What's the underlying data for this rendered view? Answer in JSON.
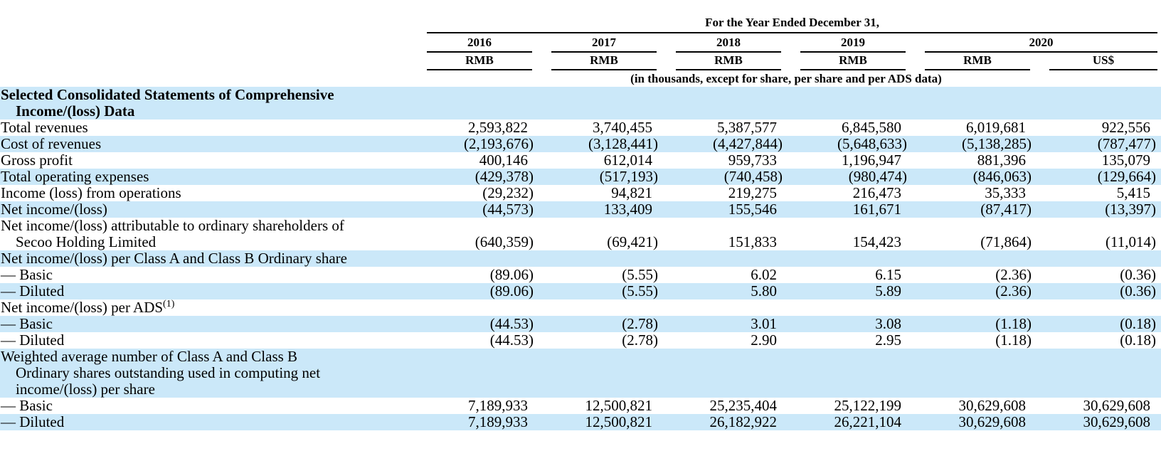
{
  "table": {
    "title": "For the Year Ended December 31,",
    "units_note": "(in thousands, except for share, per share and per ADS data)",
    "colors": {
      "stripe": "#cbe8f9",
      "text": "#000000",
      "rule": "#000000"
    },
    "year_columns": [
      {
        "label": "2016",
        "span": 1
      },
      {
        "label": "2017",
        "span": 1
      },
      {
        "label": "2018",
        "span": 1
      },
      {
        "label": "2019",
        "span": 1
      },
      {
        "label": "2020",
        "span": 2
      }
    ],
    "currency_columns": [
      "RMB",
      "RMB",
      "RMB",
      "RMB",
      "RMB",
      "US$"
    ],
    "rows": [
      {
        "label": "Selected Consolidated Statements of Comprehensive\nIncome/(loss) Data",
        "bold": true,
        "shaded": true,
        "values": [
          "",
          "",
          "",
          "",
          "",
          ""
        ]
      },
      {
        "label": "Total revenues",
        "bold": false,
        "shaded": false,
        "values": [
          "2,593,822",
          "3,740,455",
          "5,387,577",
          "6,845,580",
          "6,019,681",
          "922,556"
        ]
      },
      {
        "label": "Cost of revenues",
        "bold": false,
        "shaded": true,
        "values": [
          "(2,193,676)",
          "(3,128,441)",
          "(4,427,844)",
          "(5,648,633)",
          "(5,138,285)",
          "(787,477)"
        ]
      },
      {
        "label": "Gross profit",
        "bold": false,
        "shaded": false,
        "values": [
          "400,146",
          "612,014",
          "959,733",
          "1,196,947",
          "881,396",
          "135,079"
        ]
      },
      {
        "label": "Total operating expenses",
        "bold": false,
        "shaded": true,
        "values": [
          "(429,378)",
          "(517,193)",
          "(740,458)",
          "(980,474)",
          "(846,063)",
          "(129,664)"
        ]
      },
      {
        "label": "Income (loss) from operations",
        "bold": false,
        "shaded": false,
        "values": [
          "(29,232)",
          "94,821",
          "219,275",
          "216,473",
          "35,333",
          "5,415"
        ]
      },
      {
        "label": "Net income/(loss)",
        "bold": false,
        "shaded": true,
        "values": [
          "(44,573)",
          "133,409",
          "155,546",
          "161,671",
          "(87,417)",
          "(13,397)"
        ]
      },
      {
        "label": "Net income/(loss) attributable to ordinary shareholders of\nSecoo Holding Limited",
        "bold": false,
        "shaded": false,
        "values": [
          "(640,359)",
          "(69,421)",
          "151,833",
          "154,423",
          "(71,864)",
          "(11,014)"
        ]
      },
      {
        "label": "Net income/(loss) per Class A and Class B Ordinary share",
        "bold": false,
        "shaded": true,
        "values": [
          "",
          "",
          "",
          "",
          "",
          ""
        ]
      },
      {
        "label": "— Basic",
        "bold": false,
        "shaded": false,
        "values": [
          "(89.06)",
          "(5.55)",
          "6.02",
          "6.15",
          "(2.36)",
          "(0.36)"
        ]
      },
      {
        "label": "— Diluted",
        "bold": false,
        "shaded": true,
        "values": [
          "(89.06)",
          "(5.55)",
          "5.80",
          "5.89",
          "(2.36)",
          "(0.36)"
        ]
      },
      {
        "label": "Net income/(loss) per ADS",
        "sup": "(1)",
        "bold": false,
        "shaded": false,
        "values": [
          "",
          "",
          "",
          "",
          "",
          ""
        ]
      },
      {
        "label": "— Basic",
        "bold": false,
        "shaded": true,
        "values": [
          "(44.53)",
          "(2.78)",
          "3.01",
          "3.08",
          "(1.18)",
          "(0.18)"
        ]
      },
      {
        "label": "— Diluted",
        "bold": false,
        "shaded": false,
        "values": [
          "(44.53)",
          "(2.78)",
          "2.90",
          "2.95",
          "(1.18)",
          "(0.18)"
        ]
      },
      {
        "label": "Weighted average number of Class A and Class B\nOrdinary shares outstanding used in computing net\nincome/(loss) per share",
        "bold": false,
        "shaded": true,
        "values": [
          "",
          "",
          "",
          "",
          "",
          ""
        ]
      },
      {
        "label": "— Basic",
        "bold": false,
        "shaded": false,
        "values": [
          "7,189,933",
          "12,500,821",
          "25,235,404",
          "25,122,199",
          "30,629,608",
          "30,629,608"
        ]
      },
      {
        "label": "— Diluted",
        "bold": false,
        "shaded": true,
        "values": [
          "7,189,933",
          "12,500,821",
          "26,182,922",
          "26,221,104",
          "30,629,608",
          "30,629,608"
        ]
      }
    ]
  }
}
